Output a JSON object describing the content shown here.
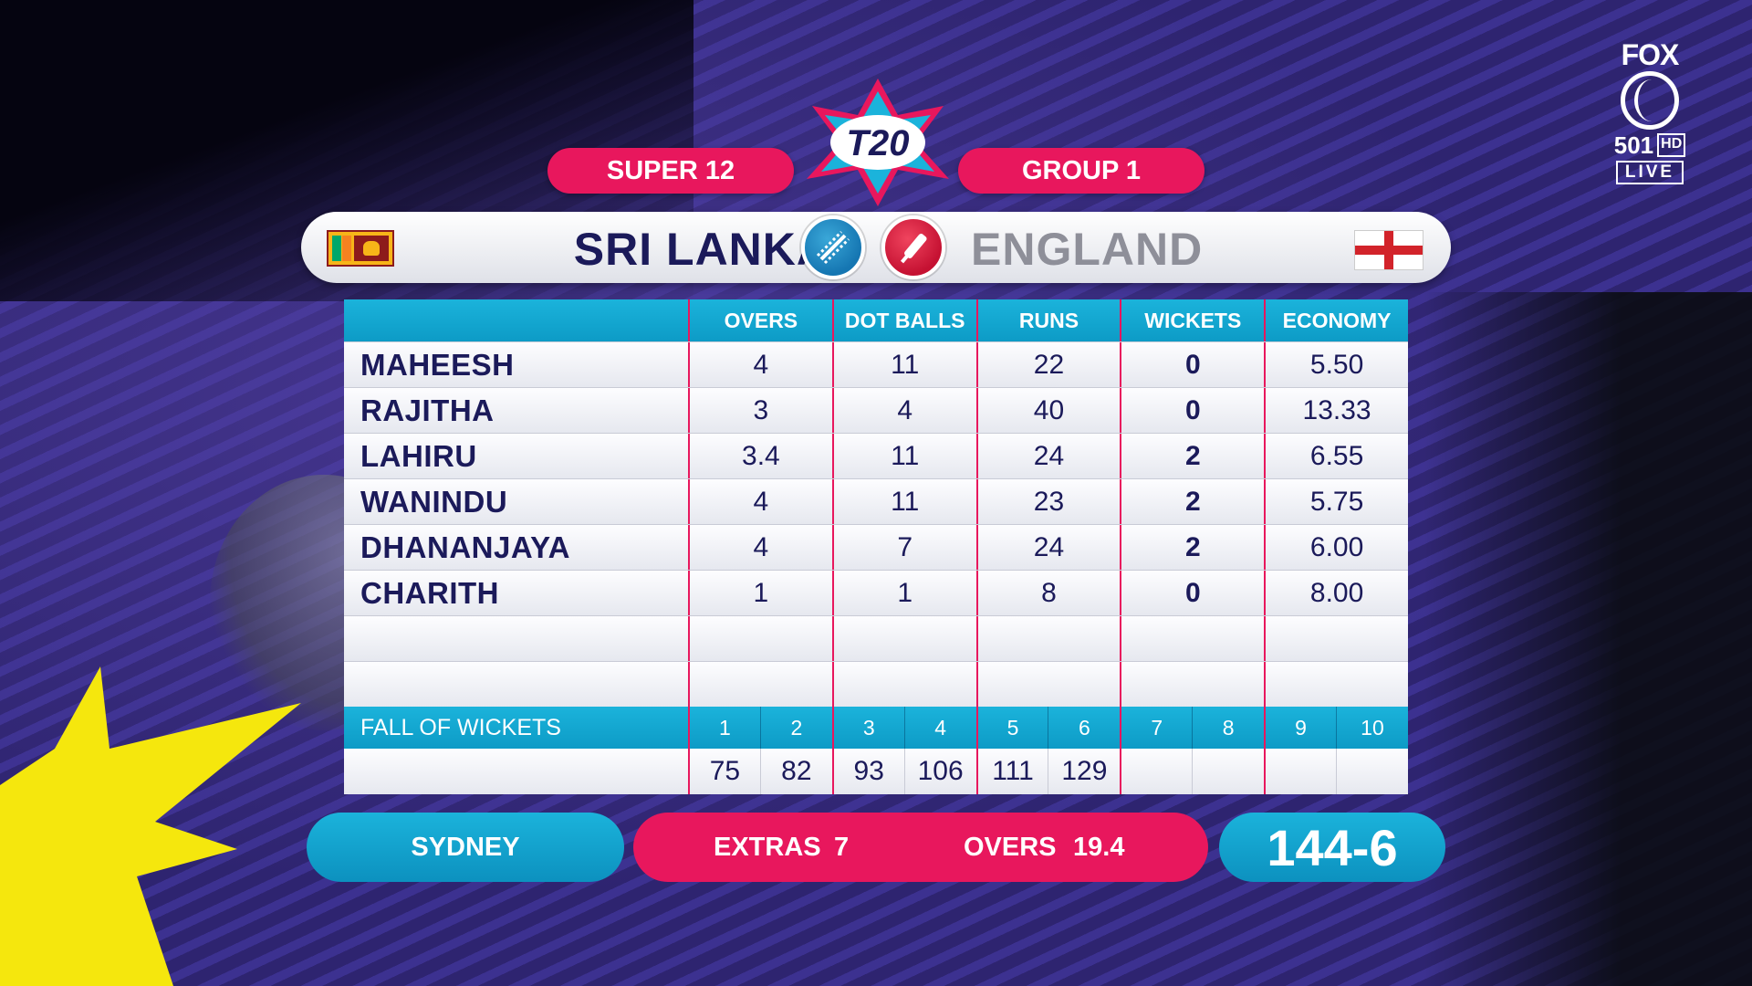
{
  "broadcaster": {
    "name": "FOX",
    "channel": "501",
    "quality": "HD",
    "status": "LIVE"
  },
  "event": {
    "stage": "SUPER 12",
    "group": "GROUP 1"
  },
  "teams": {
    "batting": "SRI LANKA",
    "bowling": "ENGLAND"
  },
  "table": {
    "columns": [
      "OVERS",
      "DOT BALLS",
      "RUNS",
      "WICKETS",
      "ECONOMY"
    ],
    "rows": [
      {
        "name": "MAHEESH",
        "overs": "4",
        "dots": "11",
        "runs": "22",
        "wickets": "0",
        "economy": "5.50"
      },
      {
        "name": "RAJITHA",
        "overs": "3",
        "dots": "4",
        "runs": "40",
        "wickets": "0",
        "economy": "13.33"
      },
      {
        "name": "LAHIRU",
        "overs": "3.4",
        "dots": "11",
        "runs": "24",
        "wickets": "2",
        "economy": "6.55"
      },
      {
        "name": "WANINDU",
        "overs": "4",
        "dots": "11",
        "runs": "23",
        "wickets": "2",
        "economy": "5.75"
      },
      {
        "name": "DHANANJAYA",
        "overs": "4",
        "dots": "7",
        "runs": "24",
        "wickets": "2",
        "economy": "6.00"
      },
      {
        "name": "CHARITH",
        "overs": "1",
        "dots": "1",
        "runs": "8",
        "wickets": "0",
        "economy": "8.00"
      },
      {
        "name": "",
        "overs": "",
        "dots": "",
        "runs": "",
        "wickets": "",
        "economy": ""
      },
      {
        "name": "",
        "overs": "",
        "dots": "",
        "runs": "",
        "wickets": "",
        "economy": ""
      }
    ]
  },
  "fall_of_wickets": {
    "label": "FALL OF WICKETS",
    "numbers": [
      "1",
      "2",
      "3",
      "4",
      "5",
      "6",
      "7",
      "8",
      "9",
      "10"
    ],
    "scores": [
      "75",
      "82",
      "93",
      "106",
      "111",
      "129",
      "",
      "",
      "",
      ""
    ]
  },
  "footer": {
    "venue": "SYDNEY",
    "extras_label": "EXTRAS",
    "extras_value": "7",
    "overs_label": "OVERS",
    "overs_value": "19.4",
    "score": "144-6"
  },
  "colors": {
    "pink": "#e8175d",
    "cyan": "#1bb3db",
    "navy": "#1b1a5a",
    "background": "#2e2470"
  },
  "icons": {
    "home_flag": "sri-lanka-flag-icon",
    "away_flag": "england-flag-icon",
    "batting": "cricket-ball-icon",
    "bowling": "cricket-bat-icon"
  }
}
